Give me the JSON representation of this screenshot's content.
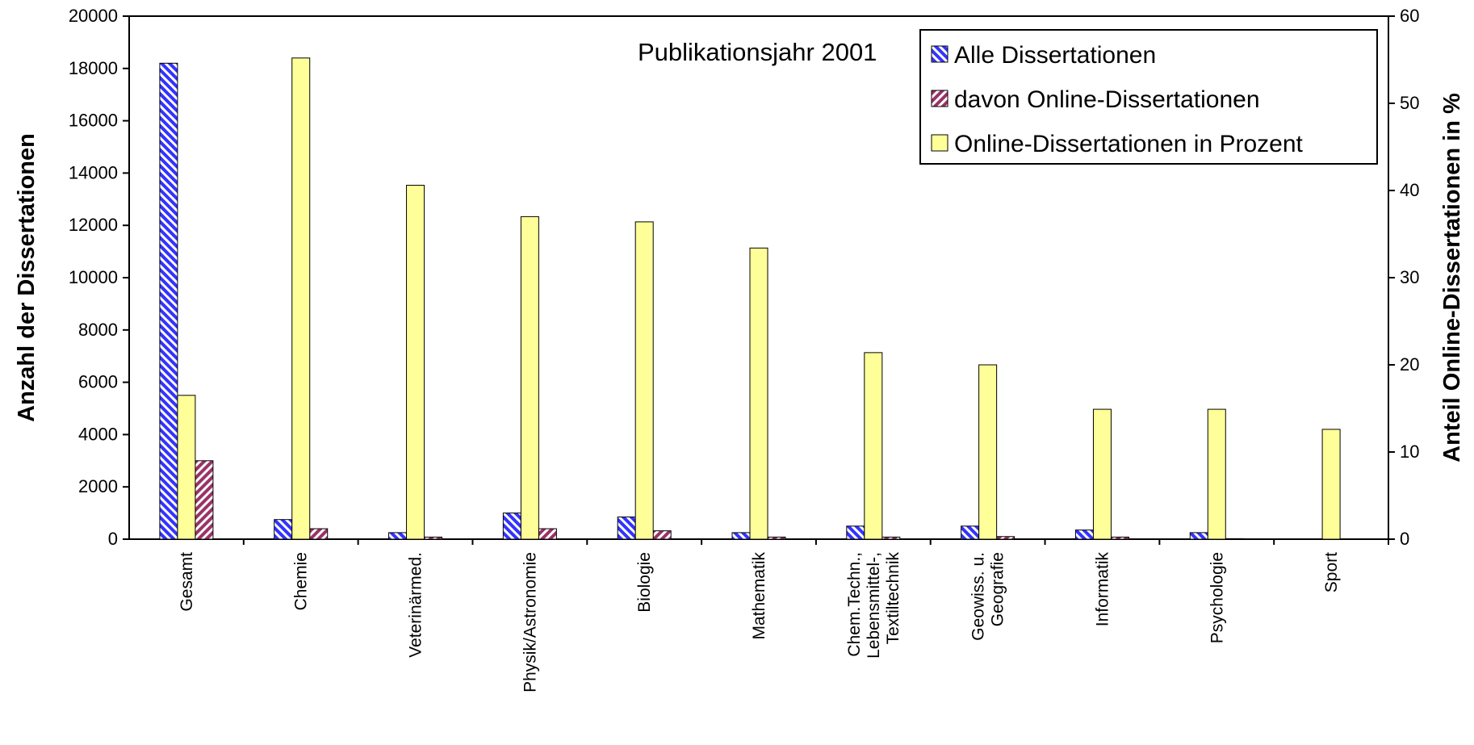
{
  "chart_data": {
    "type": "bar",
    "annotation": "Publikationsjahr 2001",
    "ylabel": "Anzahl der Dissertationen",
    "y2label": "Anteil Online-Dissertationen in %",
    "ylim": [
      0,
      20000
    ],
    "y2lim": [
      0,
      60
    ],
    "yticks": [
      "0",
      "2000",
      "4000",
      "6000",
      "8000",
      "10000",
      "12000",
      "14000",
      "16000",
      "18000",
      "20000"
    ],
    "y2ticks": [
      "0",
      "10",
      "20",
      "30",
      "40",
      "50",
      "60"
    ],
    "categories": [
      [
        "Gesamt"
      ],
      [
        "Chemie"
      ],
      [
        "Veterinärmed."
      ],
      [
        "Physik/Astronomie"
      ],
      [
        "Biologie"
      ],
      [
        "Mathematik"
      ],
      [
        "Chem.Techn.,",
        "Lebensmittel-,",
        "Textiltechnik"
      ],
      [
        "Geowiss. u.",
        "Geografie"
      ],
      [
        "Informatik"
      ],
      [
        "Psychologie"
      ],
      [
        "Sport"
      ]
    ],
    "series": [
      {
        "name": "Alle Dissertationen",
        "axis": "left",
        "color": "#3333ff",
        "pattern": "diagonal-hatch",
        "values": [
          18200,
          750,
          250,
          1000,
          850,
          250,
          500,
          500,
          350,
          250,
          0
        ]
      },
      {
        "name": "davon Online-Dissertationen",
        "axis": "left",
        "color": "#993366",
        "pattern": "diagonal-hatch",
        "values": [
          3000,
          400,
          80,
          400,
          320,
          80,
          80,
          100,
          80,
          20,
          0
        ]
      },
      {
        "name": "Online-Dissertationen in Prozent",
        "axis": "right",
        "color": "#ffff99",
        "pattern": "solid",
        "values": [
          16.5,
          55.2,
          40.6,
          37.0,
          36.4,
          33.4,
          21.4,
          20.0,
          14.9,
          14.9,
          12.6
        ]
      }
    ],
    "grid": false,
    "legend": "top-right"
  }
}
